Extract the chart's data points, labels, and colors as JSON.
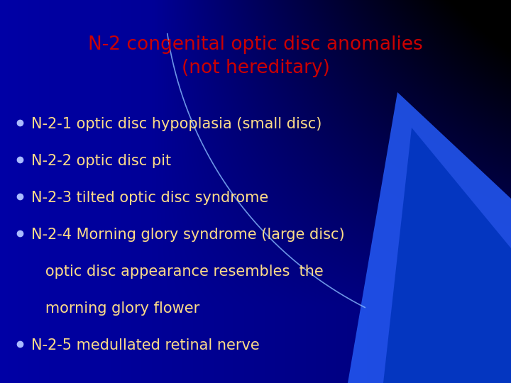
{
  "title_line1": "N-2 congenital optic disc anomalies",
  "title_line2": "(not hereditary)",
  "title_color": "#cc0000",
  "bullet_color": "#ffdd88",
  "bullet_marker_color": "#aabbff",
  "bullets": [
    "N-2-1 optic disc hypoplasia (small disc)",
    "N-2-2 optic disc pit",
    "N-2-3 tilted optic disc syndrome",
    "N-2-4 Morning glory syndrome (large disc)",
    "   optic disc appearance resembles  the",
    "   morning glory flower",
    "N-2-5 medullated retinal nerve"
  ],
  "bullet_has_marker": [
    true,
    true,
    true,
    true,
    false,
    false,
    true
  ],
  "title_fontsize": 19,
  "bullet_fontsize": 15,
  "figsize": [
    7.2,
    5.4
  ],
  "dpi": 100
}
